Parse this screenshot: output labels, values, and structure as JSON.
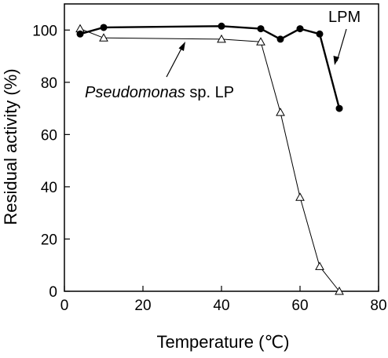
{
  "chart_data": {
    "type": "line",
    "title": "",
    "xlabel": "Temperature (℃)",
    "ylabel": "Residual activity (%)",
    "xlim": [
      0,
      80
    ],
    "ylim": [
      0,
      110
    ],
    "x_ticks": [
      0,
      20,
      40,
      60,
      80
    ],
    "y_ticks": [
      0,
      20,
      40,
      60,
      80,
      100
    ],
    "grid": false,
    "legend": "none",
    "series": [
      {
        "name": "LPM",
        "marker": "filled-circle",
        "line_style": "thick",
        "color": "#000000",
        "x": [
          4,
          10,
          40,
          50,
          55,
          60,
          65,
          70
        ],
        "y": [
          98.5,
          101,
          101.5,
          100.5,
          96.5,
          100.5,
          98.5,
          70
        ]
      },
      {
        "name": "Pseudomonas sp. LP",
        "marker": "open-triangle",
        "line_style": "thin",
        "color": "#000000",
        "x": [
          4,
          10,
          40,
          50,
          55,
          60,
          65,
          70
        ],
        "y": [
          100.5,
          97,
          96.5,
          95.5,
          68.5,
          36,
          9.5,
          0
        ]
      }
    ],
    "annotations": [
      {
        "series": "LPM",
        "text": "LPM"
      },
      {
        "series": "Pseudomonas sp. LP",
        "text_italic": "Pseudomonas",
        "text_rest": " sp. LP"
      }
    ]
  }
}
